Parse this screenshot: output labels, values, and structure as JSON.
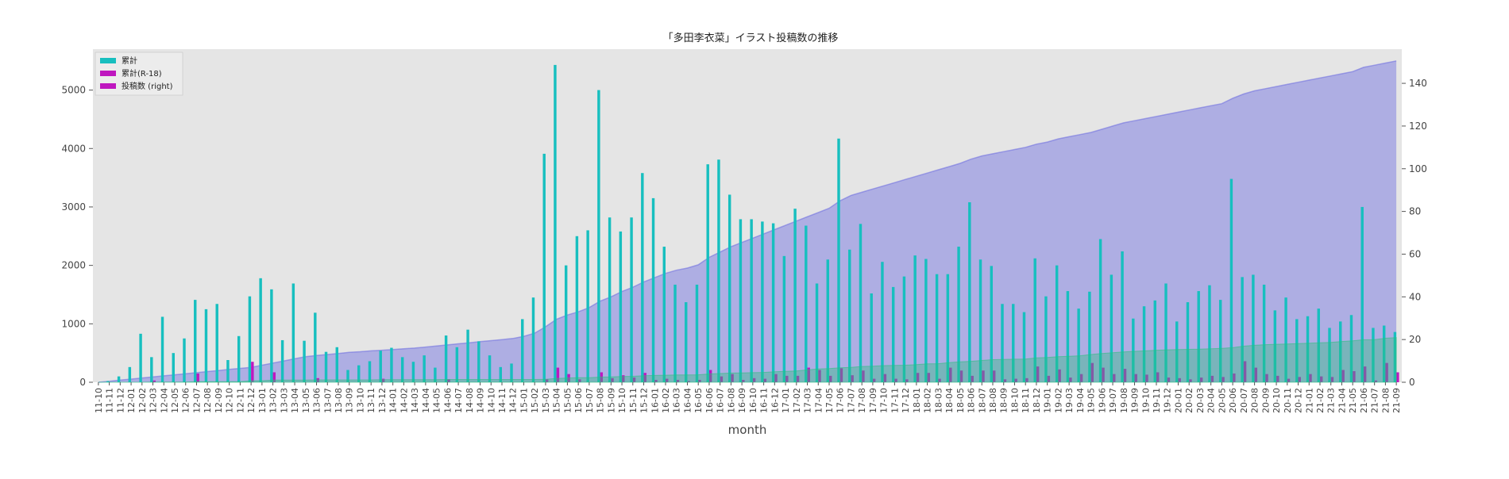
{
  "chart_data": {
    "type": "bar",
    "title": "「多田李衣菜」イラスト投稿数の推移",
    "xlabel": "month",
    "ylabel": "",
    "ylabel_right": "",
    "ylim": [
      0,
      5700
    ],
    "ylim_right": [
      0,
      156
    ],
    "yticks": [
      0,
      1000,
      2000,
      3000,
      4000,
      5000
    ],
    "yticks_right": [
      0,
      20,
      40,
      60,
      80,
      100,
      120,
      140
    ],
    "grid": false,
    "legend_position": "top-left",
    "categories": [
      "11-10",
      "11-11",
      "11-12",
      "12-01",
      "12-02",
      "12-03",
      "12-04",
      "12-05",
      "12-06",
      "12-07",
      "12-08",
      "12-09",
      "12-10",
      "12-11",
      "12-12",
      "13-01",
      "13-02",
      "13-03",
      "13-04",
      "13-05",
      "13-06",
      "13-07",
      "13-08",
      "13-09",
      "13-10",
      "13-11",
      "13-12",
      "14-01",
      "14-02",
      "14-03",
      "14-04",
      "14-05",
      "14-06",
      "14-07",
      "14-08",
      "14-09",
      "14-10",
      "14-11",
      "14-12",
      "15-01",
      "15-02",
      "15-03",
      "15-04",
      "15-05",
      "15-06",
      "15-07",
      "15-08",
      "15-09",
      "15-10",
      "15-11",
      "15-12",
      "16-01",
      "16-02",
      "16-03",
      "16-04",
      "16-05",
      "16-06",
      "16-07",
      "16-08",
      "16-09",
      "16-10",
      "16-11",
      "16-12",
      "17-01",
      "17-02",
      "17-03",
      "17-04",
      "17-05",
      "17-06",
      "17-07",
      "17-08",
      "17-09",
      "17-10",
      "17-11",
      "17-12",
      "18-01",
      "18-02",
      "18-03",
      "18-04",
      "18-05",
      "18-06",
      "18-07",
      "18-08",
      "18-09",
      "18-10",
      "18-11",
      "18-12",
      "19-01",
      "19-02",
      "19-03",
      "19-04",
      "19-05",
      "19-06",
      "19-07",
      "19-08",
      "19-09",
      "19-10",
      "19-11",
      "19-12",
      "20-01",
      "20-02",
      "20-03",
      "20-04",
      "20-05",
      "20-06",
      "20-07",
      "20-08",
      "20-09",
      "20-10",
      "20-11",
      "20-12",
      "21-01",
      "21-02",
      "21-03",
      "21-04",
      "21-05",
      "21-06",
      "21-07",
      "21-08",
      "21-09"
    ],
    "series": [
      {
        "name": "累計",
        "kind": "bar",
        "axis": "left",
        "color": "#17bfbf",
        "values": [
          0,
          20,
          100,
          260,
          830,
          430,
          1120,
          500,
          750,
          1410,
          1250,
          1340,
          380,
          790,
          1470,
          1780,
          1590,
          720,
          1690,
          710,
          1190,
          520,
          600,
          210,
          290,
          360,
          540,
          590,
          430,
          350,
          460,
          250,
          800,
          600,
          900,
          700,
          460,
          260,
          320,
          1080,
          1450,
          3910,
          5430,
          2000,
          2500,
          2600,
          5000,
          2820,
          2580,
          2820,
          3580,
          3150,
          2320,
          1670,
          1370,
          1670,
          3730,
          3810,
          3210,
          2790,
          2790,
          2750,
          2720,
          2160,
          2970,
          2680,
          1690,
          2100,
          4170,
          2270,
          2710,
          1520,
          2060,
          1630,
          1810,
          2170,
          2110,
          1850,
          1850,
          2320,
          3080,
          2100,
          1990,
          1340,
          1340,
          1200,
          2120,
          1470,
          2000,
          1560,
          1260,
          1550,
          2450,
          1840,
          2240,
          1090,
          1300,
          1400,
          1690,
          1040,
          1370,
          1560,
          1660,
          1410,
          3480,
          1800,
          1840,
          1670,
          1230,
          1450,
          1080,
          1130,
          1260,
          930,
          1040,
          1150,
          3000,
          930,
          970,
          860
        ]
      },
      {
        "name": "累計(R-18)",
        "kind": "bar",
        "axis": "left",
        "color": "#bf17bf",
        "values": [
          0,
          0,
          0,
          0,
          0,
          30,
          0,
          0,
          0,
          150,
          0,
          0,
          0,
          0,
          350,
          0,
          170,
          0,
          0,
          0,
          70,
          0,
          0,
          0,
          0,
          0,
          60,
          0,
          0,
          0,
          0,
          0,
          50,
          0,
          0,
          0,
          0,
          0,
          0,
          0,
          0,
          50,
          250,
          140,
          50,
          0,
          170,
          70,
          120,
          80,
          160,
          40,
          60,
          40,
          20,
          40,
          210,
          100,
          140,
          40,
          70,
          60,
          140,
          110,
          110,
          250,
          210,
          110,
          240,
          120,
          200,
          60,
          140,
          60,
          50,
          160,
          160,
          60,
          250,
          200,
          110,
          200,
          200,
          50,
          60,
          70,
          270,
          110,
          220,
          80,
          140,
          330,
          250,
          140,
          230,
          140,
          130,
          170,
          80,
          70,
          50,
          80,
          110,
          90,
          150,
          360,
          250,
          140,
          110,
          60,
          90,
          140,
          100,
          90,
          210,
          190,
          270,
          30,
          330,
          170
        ]
      },
      {
        "name": "投稿数 (right)",
        "kind": "area",
        "axis": "right",
        "color": "#6a6ae0",
        "values": [
          0.0,
          0.5,
          1.0,
          1.5,
          2.0,
          2.5,
          3.0,
          3.5,
          4.0,
          4.5,
          5.0,
          5.5,
          6.0,
          6.5,
          7.0,
          8.0,
          9.0,
          10.0,
          11.0,
          12.0,
          12.5,
          13.0,
          13.5,
          14.0,
          14.3,
          14.7,
          15.0,
          15.3,
          15.7,
          16.0,
          16.5,
          17.0,
          17.5,
          18.0,
          18.5,
          19.0,
          19.5,
          20.0,
          20.5,
          21.5,
          23.0,
          26.0,
          29.5,
          31.5,
          33.0,
          35.0,
          38.0,
          40.0,
          42.5,
          44.5,
          47.0,
          49.0,
          51.0,
          52.5,
          53.5,
          55.0,
          58.5,
          61.0,
          63.5,
          65.5,
          67.5,
          69.5,
          71.5,
          73.5,
          75.5,
          77.5,
          79.5,
          81.5,
          85.0,
          87.5,
          89.0,
          90.5,
          92.0,
          93.5,
          95.0,
          96.5,
          98.0,
          99.5,
          101.0,
          102.5,
          104.5,
          106.0,
          107.0,
          108.0,
          109.0,
          110.0,
          111.5,
          112.5,
          114.0,
          115.0,
          116.0,
          117.0,
          118.5,
          120.0,
          121.5,
          122.5,
          123.5,
          124.5,
          125.5,
          126.5,
          127.5,
          128.5,
          129.5,
          130.5,
          133.0,
          135.0,
          136.5,
          137.5,
          138.5,
          139.5,
          140.5,
          141.5,
          142.5,
          143.5,
          144.5,
          145.5,
          147.5,
          148.5,
          149.5,
          150.5
        ]
      }
    ],
    "overlay": {
      "name": "",
      "kind": "area",
      "axis": "right",
      "color": "#2bbf80",
      "values": [
        0.0,
        0.0,
        0.0,
        0.0,
        0.0,
        0.1,
        0.1,
        0.1,
        0.1,
        0.3,
        0.3,
        0.3,
        0.3,
        0.3,
        0.7,
        0.7,
        1.0,
        1.0,
        1.0,
        1.0,
        1.1,
        1.1,
        1.1,
        1.1,
        1.1,
        1.1,
        1.2,
        1.2,
        1.2,
        1.2,
        1.2,
        1.2,
        1.3,
        1.3,
        1.3,
        1.3,
        1.3,
        1.3,
        1.3,
        1.3,
        1.3,
        1.4,
        1.8,
        2.0,
        2.1,
        2.1,
        2.4,
        2.5,
        2.7,
        2.8,
        3.1,
        3.2,
        3.3,
        3.4,
        3.4,
        3.5,
        3.9,
        4.1,
        4.3,
        4.4,
        4.5,
        4.6,
        4.9,
        5.1,
        5.3,
        5.8,
        6.2,
        6.4,
        6.8,
        7.0,
        7.4,
        7.5,
        7.8,
        7.9,
        8.0,
        8.3,
        8.6,
        8.7,
        9.2,
        9.6,
        9.8,
        10.2,
        10.6,
        10.7,
        10.8,
        10.9,
        11.4,
        11.6,
        12.0,
        12.2,
        12.4,
        13.0,
        13.5,
        13.8,
        14.2,
        14.5,
        14.7,
        15.0,
        15.2,
        15.3,
        15.4,
        15.5,
        15.7,
        15.9,
        16.2,
        16.9,
        17.3,
        17.6,
        17.8,
        17.9,
        18.1,
        18.3,
        18.5,
        18.7,
        19.1,
        19.4,
        19.9,
        20.0,
        20.6,
        20.9
      ]
    }
  }
}
